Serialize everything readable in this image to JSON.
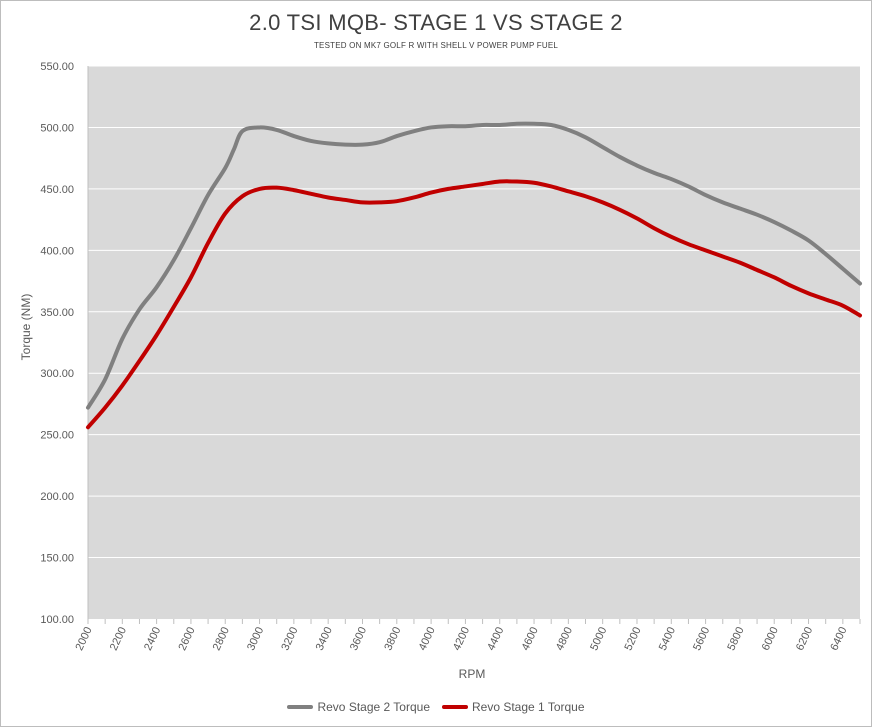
{
  "chart_data": {
    "type": "line",
    "title": "2.0 TSI MQB- STAGE 1 VS STAGE 2",
    "subtitle": "TESTED ON MK7 GOLF R WITH SHELL V POWER PUMP FUEL",
    "xlabel": "RPM",
    "ylabel": "Torque (NM)",
    "xlim": [
      2000,
      6500
    ],
    "ylim": [
      100,
      550
    ],
    "ytick_step": 50,
    "xticks": [
      2000,
      2200,
      2400,
      2600,
      2800,
      3000,
      3200,
      3400,
      3600,
      3800,
      4000,
      4200,
      4400,
      4600,
      4800,
      5000,
      5200,
      5400,
      5600,
      5800,
      6000,
      6200,
      6400
    ],
    "ytick_labels": [
      "100.00",
      "150.00",
      "200.00",
      "250.00",
      "300.00",
      "350.00",
      "400.00",
      "450.00",
      "500.00",
      "550.00"
    ],
    "grid": "horizontal",
    "plot_background": "#d9d9d9",
    "legend_position": "bottom",
    "series": [
      {
        "name": "Revo Stage 2 Torque",
        "color": "#808080",
        "x": [
          2000,
          2100,
          2200,
          2300,
          2400,
          2500,
          2600,
          2700,
          2800,
          2850,
          2900,
          3000,
          3100,
          3200,
          3300,
          3400,
          3500,
          3600,
          3700,
          3800,
          3900,
          4000,
          4100,
          4200,
          4300,
          4400,
          4500,
          4600,
          4700,
          4800,
          4900,
          5000,
          5100,
          5200,
          5300,
          5400,
          5500,
          5600,
          5700,
          5800,
          5900,
          6000,
          6100,
          6200,
          6300,
          6400,
          6500
        ],
        "y": [
          272,
          295,
          328,
          352,
          370,
          392,
          418,
          445,
          467,
          482,
          497,
          500,
          498,
          493,
          489,
          487,
          486,
          486,
          488,
          493,
          497,
          500,
          501,
          501,
          502,
          502,
          503,
          503,
          502,
          498,
          492,
          484,
          476,
          469,
          463,
          458,
          452,
          445,
          439,
          434,
          429,
          423,
          416,
          408,
          397,
          385,
          373
        ]
      },
      {
        "name": "Revo Stage 1 Torque",
        "color": "#c00000",
        "x": [
          2000,
          2100,
          2200,
          2300,
          2400,
          2500,
          2600,
          2700,
          2800,
          2900,
          3000,
          3100,
          3200,
          3300,
          3400,
          3500,
          3600,
          3700,
          3800,
          3900,
          4000,
          4100,
          4200,
          4300,
          4400,
          4500,
          4600,
          4700,
          4800,
          4900,
          5000,
          5100,
          5200,
          5300,
          5400,
          5500,
          5600,
          5700,
          5800,
          5900,
          6000,
          6100,
          6200,
          6300,
          6400,
          6500
        ],
        "y": [
          256,
          272,
          290,
          310,
          331,
          354,
          378,
          406,
          430,
          444,
          450,
          451,
          449,
          446,
          443,
          441,
          439,
          439,
          440,
          443,
          447,
          450,
          452,
          454,
          456,
          456,
          455,
          452,
          448,
          444,
          439,
          433,
          426,
          418,
          411,
          405,
          400,
          395,
          390,
          384,
          378,
          371,
          365,
          360,
          355,
          347
        ]
      }
    ]
  }
}
